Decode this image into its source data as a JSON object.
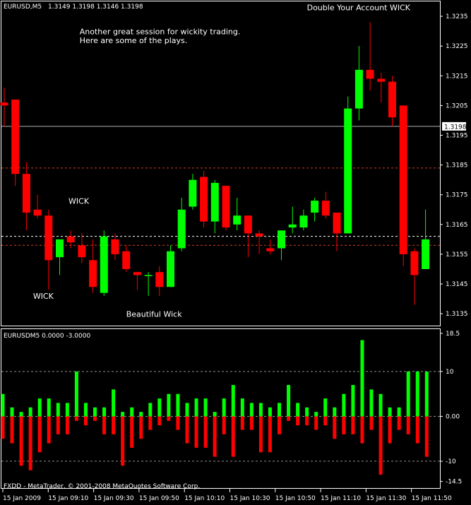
{
  "chart_data": [
    {
      "type": "candlestick",
      "symbol_label": "EURUSD,M5",
      "ohlc_label": "1.3149 1.3198 1.3146 1.3198",
      "current_price": 1.3198,
      "current_price_label": "1.3198",
      "ylim": [
        1.3131,
        1.324
      ],
      "y_ticks": [
        "1.3235",
        "1.3225",
        "1.3215",
        "1.3205",
        "1.3195",
        "1.3185",
        "1.3175",
        "1.3165",
        "1.3155",
        "1.3145",
        "1.3135"
      ],
      "horizontal_lines": {
        "solid_gray": 1.3198,
        "dashed_red": [
          1.3184,
          1.3158
        ],
        "dashed_white": 1.3161
      },
      "candles": [
        {
          "o": 1.3206,
          "h": 1.3211,
          "l": 1.3198,
          "c": 1.3205
        },
        {
          "o": 1.3207,
          "h": 1.3207,
          "l": 1.3178,
          "c": 1.3182
        },
        {
          "o": 1.3182,
          "h": 1.3186,
          "l": 1.3163,
          "c": 1.3169
        },
        {
          "o": 1.317,
          "h": 1.3175,
          "l": 1.3167,
          "c": 1.3168
        },
        {
          "o": 1.3168,
          "h": 1.317,
          "l": 1.3143,
          "c": 1.3153
        },
        {
          "o": 1.3154,
          "h": 1.3159,
          "l": 1.3148,
          "c": 1.316
        },
        {
          "o": 1.3161,
          "h": 1.3163,
          "l": 1.3157,
          "c": 1.3159
        },
        {
          "o": 1.3158,
          "h": 1.3162,
          "l": 1.3152,
          "c": 1.3154
        },
        {
          "o": 1.3153,
          "h": 1.316,
          "l": 1.3142,
          "c": 1.3144
        },
        {
          "o": 1.3142,
          "h": 1.3163,
          "l": 1.3141,
          "c": 1.3161
        },
        {
          "o": 1.316,
          "h": 1.3162,
          "l": 1.3153,
          "c": 1.3155
        },
        {
          "o": 1.3156,
          "h": 1.3158,
          "l": 1.3149,
          "c": 1.315
        },
        {
          "o": 1.3149,
          "h": 1.3149,
          "l": 1.3143,
          "c": 1.3148
        },
        {
          "o": 1.3148,
          "h": 1.3149,
          "l": 1.3141,
          "c": 1.3148
        },
        {
          "o": 1.3149,
          "h": 1.3151,
          "l": 1.3141,
          "c": 1.3144
        },
        {
          "o": 1.3144,
          "h": 1.3158,
          "l": 1.3144,
          "c": 1.3156
        },
        {
          "o": 1.3157,
          "h": 1.3174,
          "l": 1.3156,
          "c": 1.317
        },
        {
          "o": 1.3171,
          "h": 1.3182,
          "l": 1.317,
          "c": 1.318
        },
        {
          "o": 1.3181,
          "h": 1.3183,
          "l": 1.3164,
          "c": 1.3166
        },
        {
          "o": 1.3166,
          "h": 1.318,
          "l": 1.3162,
          "c": 1.3179
        },
        {
          "o": 1.3178,
          "h": 1.3178,
          "l": 1.3163,
          "c": 1.3164
        },
        {
          "o": 1.3165,
          "h": 1.3174,
          "l": 1.3163,
          "c": 1.3168
        },
        {
          "o": 1.3168,
          "h": 1.3168,
          "l": 1.3154,
          "c": 1.3162
        },
        {
          "o": 1.3162,
          "h": 1.3163,
          "l": 1.3155,
          "c": 1.3161
        },
        {
          "o": 1.3157,
          "h": 1.316,
          "l": 1.3155,
          "c": 1.3156
        },
        {
          "o": 1.3157,
          "h": 1.3163,
          "l": 1.3153,
          "c": 1.3163
        },
        {
          "o": 1.3164,
          "h": 1.3171,
          "l": 1.3162,
          "c": 1.3165
        },
        {
          "o": 1.3164,
          "h": 1.317,
          "l": 1.3163,
          "c": 1.3168
        },
        {
          "o": 1.3169,
          "h": 1.3174,
          "l": 1.3166,
          "c": 1.3173
        },
        {
          "o": 1.3173,
          "h": 1.3176,
          "l": 1.3167,
          "c": 1.3168
        },
        {
          "o": 1.3169,
          "h": 1.3169,
          "l": 1.3156,
          "c": 1.3162
        },
        {
          "o": 1.3162,
          "h": 1.3208,
          "l": 1.3162,
          "c": 1.3204
        },
        {
          "o": 1.3204,
          "h": 1.3225,
          "l": 1.32,
          "c": 1.3217
        },
        {
          "o": 1.3217,
          "h": 1.3233,
          "l": 1.321,
          "c": 1.3214
        },
        {
          "o": 1.3214,
          "h": 1.3216,
          "l": 1.3206,
          "c": 1.3213
        },
        {
          "o": 1.3213,
          "h": 1.3215,
          "l": 1.3198,
          "c": 1.3201
        },
        {
          "o": 1.3205,
          "h": 1.3205,
          "l": 1.3151,
          "c": 1.3155
        },
        {
          "o": 1.3156,
          "h": 1.3157,
          "l": 1.3138,
          "c": 1.3148
        },
        {
          "o": 1.315,
          "h": 1.317,
          "l": 1.315,
          "c": 1.316
        }
      ],
      "annotations": [
        {
          "text": "Double Your Account WICK",
          "price": 1.3237,
          "bar": 27.3
        },
        {
          "text": "Another great session for wickity trading.",
          "price": 1.3229,
          "bar": 6.8
        },
        {
          "text": "Here are some of the plays.",
          "price": 1.3226,
          "bar": 6.8
        },
        {
          "text": "WICK",
          "price": 1.3172,
          "bar": 5.8
        },
        {
          "text": "WICK",
          "price": 1.314,
          "bar": 2.6
        },
        {
          "text": "Beautiful Wick",
          "price": 1.3134,
          "bar": 11.0
        }
      ]
    },
    {
      "type": "bar",
      "indicator_label": "EURUSDM5 0.0000 -3.0000",
      "ylim": [
        -15.5,
        18.5
      ],
      "y_ticks": [
        "18.5",
        "10",
        "0.00",
        "-10",
        "-14.5"
      ],
      "dashed_levels": [
        10,
        0,
        -10
      ],
      "positive": [
        5,
        2,
        1,
        2,
        4,
        4,
        3,
        3,
        10,
        3,
        2,
        2,
        6,
        1,
        2,
        1,
        3,
        4,
        5,
        5,
        3,
        4,
        4,
        1,
        4,
        7,
        4,
        3,
        3,
        2,
        3,
        7,
        3,
        2,
        1,
        4,
        2,
        5,
        7,
        17,
        6,
        5,
        2,
        2,
        10,
        10,
        10
      ],
      "negative": [
        -5,
        -6,
        -11,
        -12,
        -8,
        -6,
        -4,
        -4,
        -1,
        -2,
        -1,
        -4,
        -4,
        -11,
        -7,
        -5,
        -3,
        -2,
        -1,
        -3,
        -6,
        -7,
        -7,
        -9,
        -4,
        -9,
        -3,
        -3,
        -8,
        -8,
        -4,
        -1,
        -2,
        -2,
        -3,
        -2,
        -5,
        -4,
        -4,
        -6,
        -3,
        -13,
        -6,
        -3,
        -4,
        -6,
        -9
      ],
      "bar_label": "EURUSDM5"
    }
  ],
  "x_axis_labels": [
    "15 Jan 2009",
    "15 Jan 09:10",
    "15 Jan 09:30",
    "15 Jan 09:50",
    "15 Jan 10:10",
    "15 Jan 10:30",
    "15 Jan 10:50",
    "15 Jan 11:10",
    "15 Jan 11:30",
    "15 Jan 11:50"
  ],
  "footer_text": "FXDD - MetaTrader, © 2001-2008 MetaQuotes Software Corp.",
  "colors": {
    "bull": "#00ff00",
    "bear": "#ff0000",
    "grid_red": "#d04020",
    "text": "#ffffff",
    "bg": "#000000"
  }
}
